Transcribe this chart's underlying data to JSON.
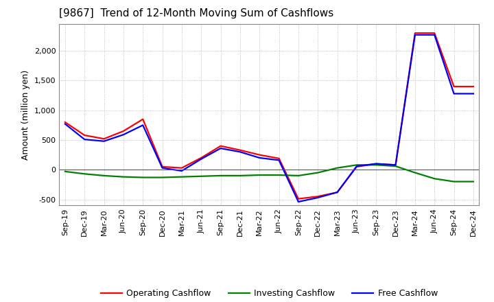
{
  "title": "[9867]  Trend of 12-Month Moving Sum of Cashflows",
  "ylabel": "Amount (million yen)",
  "background_color": "#ffffff",
  "grid_color": "#b0b0b0",
  "x_labels": [
    "Sep-19",
    "Dec-19",
    "Mar-20",
    "Jun-20",
    "Sep-20",
    "Dec-20",
    "Mar-21",
    "Jun-21",
    "Sep-21",
    "Dec-21",
    "Mar-22",
    "Jun-22",
    "Sep-22",
    "Dec-22",
    "Mar-23",
    "Jun-23",
    "Sep-23",
    "Dec-23",
    "Mar-24",
    "Jun-24",
    "Sep-24",
    "Dec-24"
  ],
  "operating_cashflow": [
    800,
    580,
    520,
    650,
    850,
    50,
    30,
    200,
    400,
    330,
    250,
    190,
    -490,
    -450,
    -380,
    50,
    100,
    80,
    2300,
    2300,
    1400,
    1400
  ],
  "investing_cashflow": [
    -30,
    -70,
    -100,
    -120,
    -130,
    -130,
    -120,
    -110,
    -100,
    -100,
    -90,
    -90,
    -100,
    -50,
    30,
    80,
    80,
    60,
    -50,
    -150,
    -200,
    -200
  ],
  "free_cashflow": [
    770,
    510,
    480,
    590,
    750,
    30,
    -20,
    180,
    360,
    300,
    200,
    160,
    -540,
    -470,
    -380,
    60,
    100,
    80,
    2270,
    2270,
    1280,
    1280
  ],
  "ylim": [
    -600,
    2450
  ],
  "yticks": [
    -500,
    0,
    500,
    1000,
    1500,
    2000
  ],
  "operating_color": "#ff0000",
  "investing_color": "#008000",
  "free_color": "#0000ff",
  "line_width": 1.6,
  "title_fontsize": 11,
  "title_fontweight": "normal"
}
